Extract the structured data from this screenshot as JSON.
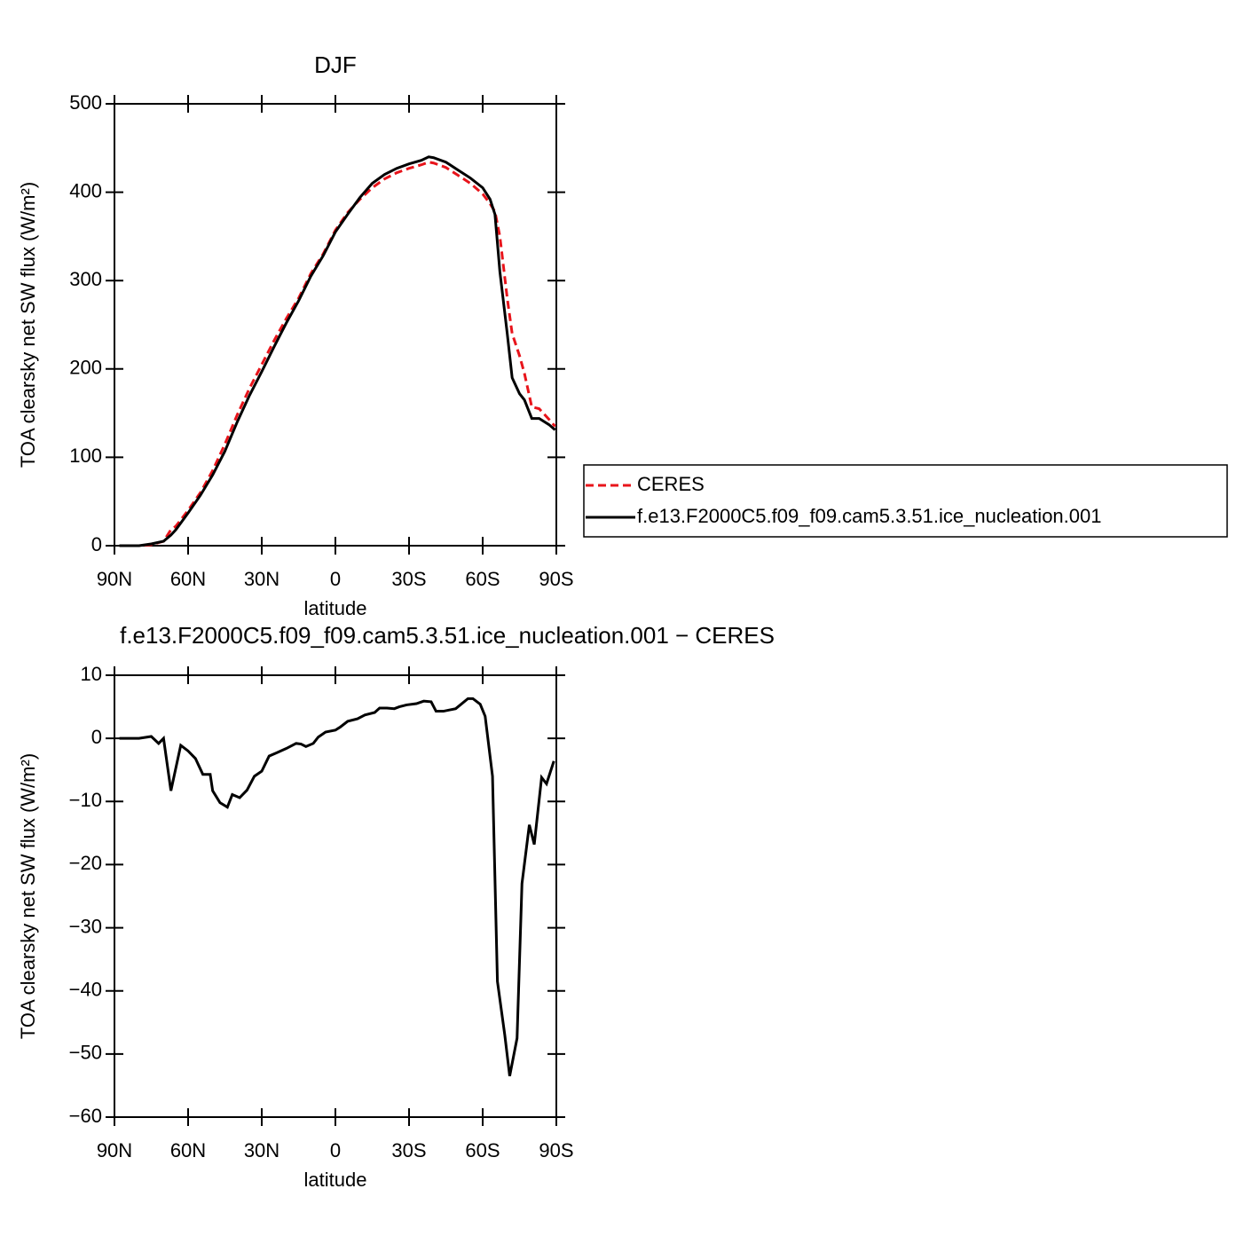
{
  "chart_data": [
    {
      "type": "line",
      "title": "DJF",
      "xlabel": "latitude",
      "ylabel": "TOA clearsky net SW flux (W/m²)",
      "xlim": [
        90,
        -90
      ],
      "ylim": [
        0,
        500
      ],
      "xticks": [
        {
          "value": 90,
          "label": "90N"
        },
        {
          "value": 60,
          "label": "60N"
        },
        {
          "value": 30,
          "label": "30N"
        },
        0,
        {
          "value": -30,
          "label": "30S"
        },
        {
          "value": -60,
          "label": "60S"
        },
        {
          "value": -90,
          "label": "90S"
        }
      ],
      "yticks": [
        0,
        100,
        200,
        300,
        400,
        500
      ],
      "legend": "right",
      "x": [
        88,
        80,
        75,
        70,
        67,
        65,
        60,
        55,
        50,
        45,
        40,
        35,
        30,
        25,
        20,
        15,
        10,
        5,
        0,
        -5,
        -10,
        -15,
        -20,
        -25,
        -30,
        -35,
        -38,
        -40,
        -45,
        -50,
        -55,
        -60,
        -63,
        -65,
        -67,
        -70,
        -72,
        -75,
        -77,
        -80,
        -83,
        -87,
        -89.5
      ],
      "series": [
        {
          "name": "CERES",
          "color": "#e8141b",
          "style": "dashed",
          "values": [
            0,
            0,
            1,
            5,
            18,
            22,
            40,
            60,
            85,
            115,
            148,
            178,
            205,
            232,
            257,
            280,
            308,
            330,
            357,
            377,
            392,
            405,
            415,
            422,
            427,
            431,
            434,
            433,
            428,
            419,
            410,
            398,
            387,
            378,
            350,
            280,
            240,
            215,
            195,
            157,
            155,
            143,
            135
          ]
        },
        {
          "name": "f.e13.F2000C5.f09_f09.cam5.3.51.ice_nucleation.001",
          "color": "#000000",
          "style": "solid",
          "values": [
            0,
            0,
            2,
            5,
            12,
            18,
            37,
            57,
            80,
            107,
            140,
            170,
            197,
            225,
            252,
            277,
            305,
            328,
            355,
            375,
            394,
            410,
            420,
            427,
            432,
            436,
            440,
            439,
            434,
            425,
            416,
            405,
            392,
            375,
            310,
            240,
            190,
            172,
            165,
            144,
            144,
            137,
            131
          ]
        }
      ]
    },
    {
      "type": "line",
      "title": "f.e13.F2000C5.f09_f09.cam5.3.51.ice_nucleation.001 − CERES",
      "xlabel": "latitude",
      "ylabel": "TOA clearsky net SW flux (W/m²)",
      "xlim": [
        90,
        -90
      ],
      "ylim": [
        -60,
        10
      ],
      "xticks": [
        {
          "value": 90,
          "label": "90N"
        },
        {
          "value": 60,
          "label": "60N"
        },
        {
          "value": 30,
          "label": "30N"
        },
        0,
        {
          "value": -30,
          "label": "30S"
        },
        {
          "value": -60,
          "label": "60S"
        },
        {
          "value": -90,
          "label": "90S"
        }
      ],
      "yticks": [
        {
          "value": -60,
          "label": "−60"
        },
        {
          "value": -50,
          "label": "−50"
        },
        {
          "value": -40,
          "label": "−40"
        },
        {
          "value": -30,
          "label": "−30"
        },
        {
          "value": -20,
          "label": "−20"
        },
        {
          "value": -10,
          "label": "−10"
        },
        0,
        10
      ],
      "x": [
        88,
        80,
        75,
        72,
        70,
        67,
        63,
        60,
        57,
        54,
        51,
        50,
        47,
        44,
        42,
        39,
        36,
        33,
        30,
        27,
        24,
        20,
        16,
        14,
        12,
        9,
        7,
        4,
        0,
        -2,
        -5,
        -9,
        -12,
        -16,
        -18,
        -21,
        -24,
        -26,
        -29,
        -33,
        -36,
        -39,
        -41,
        -44,
        -49,
        -54,
        -56,
        -59,
        -61,
        -64,
        -66,
        -69,
        -71,
        -74,
        -76,
        -79,
        -81,
        -84,
        -86,
        -89
      ],
      "series": [
        {
          "color": "#000000",
          "style": "solid",
          "values": [
            0,
            0,
            0.3,
            -0.8,
            0,
            -8.3,
            -1.1,
            -2,
            -3.2,
            -5.7,
            -5.7,
            -8.3,
            -10.2,
            -10.9,
            -8.9,
            -9.4,
            -8.2,
            -6,
            -5.2,
            -2.8,
            -2.3,
            -1.6,
            -0.8,
            -0.9,
            -1.3,
            -0.8,
            0.2,
            1,
            1.3,
            1.8,
            2.7,
            3.1,
            3.7,
            4.1,
            4.8,
            4.8,
            4.7,
            5.0,
            5.3,
            5.5,
            5.9,
            5.8,
            4.3,
            4.3,
            4.7,
            6.3,
            6.3,
            5.4,
            3.5,
            -6,
            -38.5,
            -47,
            -53.5,
            -47.5,
            -23,
            -13.7,
            -16.8,
            -6.2,
            -7.2,
            -3.6
          ]
        }
      ]
    }
  ]
}
